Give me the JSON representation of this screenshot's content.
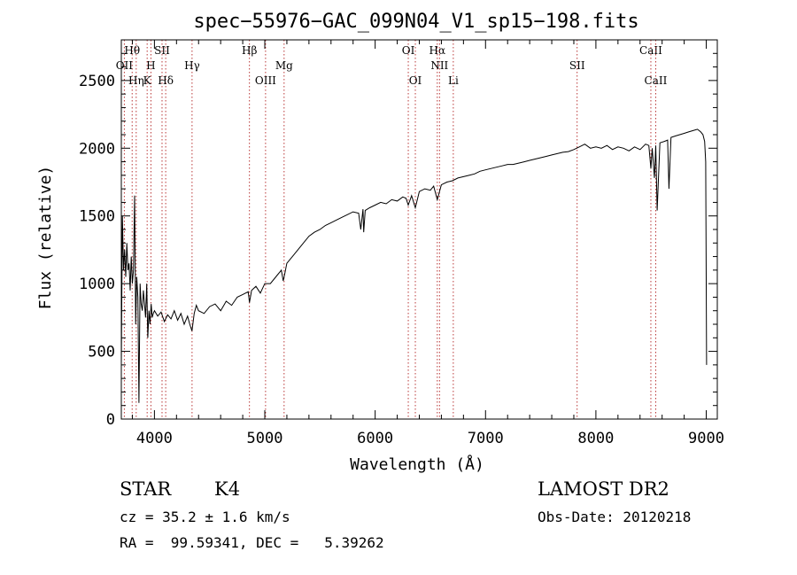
{
  "chart_data": {
    "type": "line",
    "title": "spec−55976−GAC_099N04_V1_sp15−198.fits",
    "xlabel": "Wavelength (Å)",
    "ylabel": "Flux (relative)",
    "xlim": [
      3700,
      9100
    ],
    "ylim": [
      0,
      2800
    ],
    "xticks": [
      4000,
      5000,
      6000,
      7000,
      8000,
      9000
    ],
    "yticks": [
      0,
      500,
      1000,
      1500,
      2000,
      2500
    ],
    "grid": false,
    "series": [
      {
        "name": "flux",
        "x": [
          3700,
          3710,
          3720,
          3730,
          3740,
          3750,
          3760,
          3770,
          3780,
          3790,
          3800,
          3810,
          3820,
          3830,
          3840,
          3850,
          3860,
          3870,
          3880,
          3890,
          3900,
          3910,
          3920,
          3930,
          3940,
          3950,
          3960,
          3970,
          3980,
          3990,
          4000,
          4030,
          4060,
          4090,
          4120,
          4150,
          4180,
          4210,
          4240,
          4270,
          4300,
          4320,
          4340,
          4360,
          4380,
          4400,
          4450,
          4500,
          4550,
          4600,
          4650,
          4700,
          4750,
          4800,
          4850,
          4861,
          4880,
          4920,
          4960,
          5000,
          5050,
          5100,
          5150,
          5167,
          5183,
          5200,
          5250,
          5300,
          5350,
          5400,
          5450,
          5500,
          5550,
          5600,
          5650,
          5700,
          5750,
          5800,
          5850,
          5870,
          5890,
          5896,
          5910,
          5950,
          6000,
          6050,
          6100,
          6150,
          6200,
          6250,
          6280,
          6300,
          6330,
          6364,
          6400,
          6450,
          6500,
          6530,
          6563,
          6600,
          6650,
          6700,
          6750,
          6800,
          6850,
          6900,
          6950,
          7000,
          7050,
          7100,
          7150,
          7200,
          7250,
          7300,
          7350,
          7400,
          7450,
          7500,
          7550,
          7600,
          7650,
          7700,
          7750,
          7800,
          7850,
          7900,
          7950,
          8000,
          8050,
          8100,
          8150,
          8200,
          8250,
          8300,
          8350,
          8400,
          8450,
          8480,
          8498,
          8510,
          8530,
          8542,
          8555,
          8580,
          8620,
          8650,
          8662,
          8680,
          8720,
          8760,
          8800,
          8840,
          8880,
          8920,
          8950,
          8970,
          8985,
          8995,
          9000,
          9003
        ],
        "y": [
          400,
          1500,
          1100,
          1250,
          1050,
          1300,
          1100,
          1150,
          950,
          1200,
          1000,
          1100,
          1650,
          700,
          1050,
          900,
          120,
          1000,
          850,
          800,
          950,
          850,
          750,
          1000,
          600,
          800,
          700,
          850,
          750,
          780,
          800,
          760,
          790,
          720,
          770,
          740,
          800,
          730,
          780,
          700,
          760,
          700,
          650,
          780,
          840,
          800,
          780,
          830,
          850,
          800,
          870,
          840,
          900,
          920,
          940,
          860,
          950,
          980,
          930,
          1000,
          1000,
          1050,
          1100,
          1020,
          1080,
          1150,
          1200,
          1250,
          1300,
          1350,
          1380,
          1400,
          1430,
          1450,
          1470,
          1490,
          1510,
          1530,
          1520,
          1400,
          1550,
          1380,
          1540,
          1560,
          1580,
          1600,
          1590,
          1620,
          1610,
          1640,
          1630,
          1580,
          1650,
          1560,
          1680,
          1700,
          1690,
          1720,
          1620,
          1730,
          1750,
          1760,
          1780,
          1790,
          1800,
          1810,
          1830,
          1840,
          1850,
          1860,
          1870,
          1880,
          1880,
          1890,
          1900,
          1910,
          1920,
          1930,
          1940,
          1950,
          1960,
          1970,
          1975,
          1990,
          2010,
          2030,
          2000,
          2010,
          2000,
          2020,
          1990,
          2010,
          2000,
          1980,
          2010,
          1990,
          2030,
          2020,
          1850,
          2000,
          1780,
          2020,
          1540,
          2040,
          2050,
          2060,
          1700,
          2080,
          2090,
          2100,
          2110,
          2120,
          2130,
          2140,
          2120,
          2100,
          2050,
          1900,
          1000,
          400
        ]
      }
    ],
    "line_markers": [
      {
        "label": "Hθ",
        "wave": 3798,
        "row": 0
      },
      {
        "label": "OII",
        "wave": 3727,
        "row": 1
      },
      {
        "label": "Hη",
        "wave": 3835,
        "row": 2
      },
      {
        "label": "SII",
        "wave": 4069,
        "row": 0
      },
      {
        "label": "H",
        "wave": 3968,
        "row": 1
      },
      {
        "label": "K",
        "wave": 3934,
        "row": 2
      },
      {
        "label": "Hγ",
        "wave": 4341,
        "row": 1
      },
      {
        "label": "Hδ",
        "wave": 4102,
        "row": 2
      },
      {
        "label": "Hβ",
        "wave": 4861,
        "row": 0
      },
      {
        "label": "Mg",
        "wave": 5175,
        "row": 1
      },
      {
        "label": "OIII",
        "wave": 5007,
        "row": 2
      },
      {
        "label": "OI",
        "wave": 6300,
        "row": 0
      },
      {
        "label": "OI",
        "wave": 6364,
        "row": 2
      },
      {
        "label": "Hα",
        "wave": 6563,
        "row": 0
      },
      {
        "label": "NII",
        "wave": 6583,
        "row": 1
      },
      {
        "label": "Li",
        "wave": 6708,
        "row": 2
      },
      {
        "label": "SII",
        "wave": 7830,
        "row": 1
      },
      {
        "label": "CaII",
        "wave": 8498,
        "row": 0
      },
      {
        "label": "CaII",
        "wave": 8542,
        "row": 2
      }
    ]
  },
  "info": {
    "object_class": "STAR",
    "subclass": "K4",
    "survey": "LAMOST DR2",
    "redshift": "cz = 35.2 ± 1.6 km/s",
    "obs_date": "Obs-Date: 20120218",
    "coords": "RA =  99.59341, DEC =   5.39262"
  }
}
